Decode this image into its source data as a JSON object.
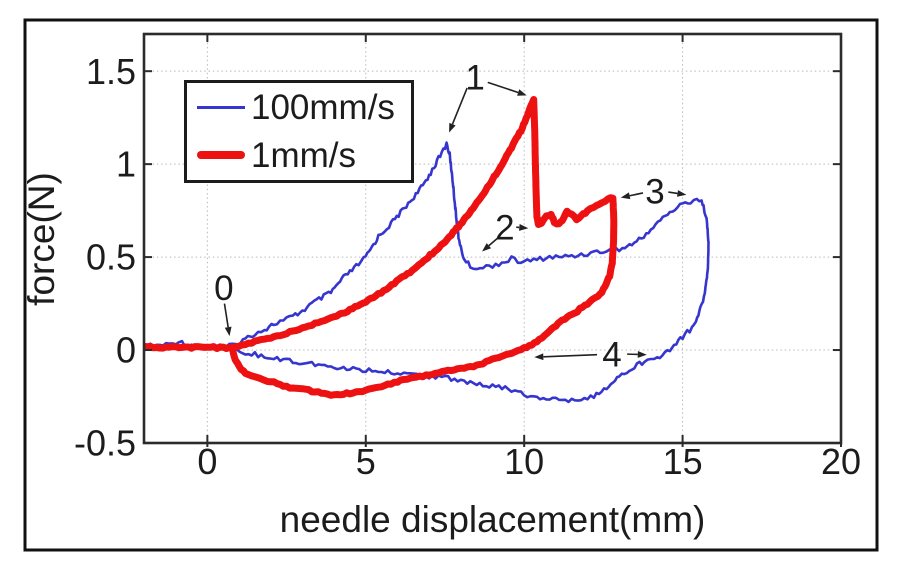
{
  "figure": {
    "background": "#ffffff",
    "border_color": "#111111",
    "frame_color": "#2b2b2b",
    "grid_color": "#b9b9b9",
    "text_color": "#1c1c1c"
  },
  "chart_data": {
    "type": "line",
    "title": "",
    "xlabel": "needle displacement(mm)",
    "ylabel": "force(N)",
    "xlim": [
      -2,
      20
    ],
    "ylim": [
      -0.5,
      1.7
    ],
    "xticks": {
      "values": [
        0,
        5,
        10,
        15,
        20
      ],
      "labels": [
        "0",
        "5",
        "10",
        "15",
        "20"
      ]
    },
    "yticks": {
      "values": [
        -0.5,
        0,
        0.5,
        1,
        1.5
      ],
      "labels": [
        "-0.5",
        "0",
        "0.5",
        "1",
        "1.5"
      ]
    },
    "grid": true,
    "legend": {
      "position": "upper left",
      "entries": [
        {
          "label": "100mm/s",
          "color": "#3636cf",
          "thickness": 3
        },
        {
          "label": "1mm/s",
          "color": "#ee1111",
          "thickness": 8
        }
      ]
    },
    "series": [
      {
        "name": "100mm/s",
        "color": "#3636cf",
        "stroke_width": 2.6,
        "noise": 0.013,
        "points": [
          [
            -2,
            0.02
          ],
          [
            -1.6,
            0.025
          ],
          [
            -1.2,
            0.03
          ],
          [
            -0.9,
            0.05
          ],
          [
            -0.7,
            0.03
          ],
          [
            -0.3,
            0.025
          ],
          [
            0,
            0.02
          ],
          [
            0.4,
            0.02
          ],
          [
            0.7,
            0.02
          ],
          [
            0.9,
            0.03
          ],
          [
            1.2,
            0.06
          ],
          [
            1.5,
            0.09
          ],
          [
            1.8,
            0.11
          ],
          [
            2.1,
            0.14
          ],
          [
            2.4,
            0.16
          ],
          [
            2.7,
            0.18
          ],
          [
            3.0,
            0.21
          ],
          [
            3.3,
            0.25
          ],
          [
            3.6,
            0.28
          ],
          [
            3.9,
            0.31
          ],
          [
            4.3,
            0.39
          ],
          [
            4.7,
            0.45
          ],
          [
            5.0,
            0.5
          ],
          [
            5.4,
            0.61
          ],
          [
            5.8,
            0.68
          ],
          [
            6.1,
            0.74
          ],
          [
            6.4,
            0.8
          ],
          [
            6.7,
            0.86
          ],
          [
            7.0,
            0.94
          ],
          [
            7.2,
            1.0
          ],
          [
            7.4,
            1.06
          ],
          [
            7.55,
            1.11
          ],
          [
            7.65,
            1.05
          ],
          [
            7.75,
            0.9
          ],
          [
            7.85,
            0.72
          ],
          [
            7.95,
            0.58
          ],
          [
            8.1,
            0.49
          ],
          [
            8.3,
            0.45
          ],
          [
            8.6,
            0.44
          ],
          [
            9.0,
            0.455
          ],
          [
            9.3,
            0.47
          ],
          [
            9.6,
            0.49
          ],
          [
            9.9,
            0.475
          ],
          [
            10.2,
            0.48
          ],
          [
            10.5,
            0.49
          ],
          [
            10.8,
            0.5
          ],
          [
            11.1,
            0.5
          ],
          [
            11.4,
            0.505
          ],
          [
            11.7,
            0.51
          ],
          [
            12.0,
            0.52
          ],
          [
            12.4,
            0.53
          ],
          [
            12.8,
            0.535
          ],
          [
            13.1,
            0.545
          ],
          [
            13.4,
            0.57
          ],
          [
            13.7,
            0.6
          ],
          [
            14.0,
            0.65
          ],
          [
            14.3,
            0.7
          ],
          [
            14.6,
            0.74
          ],
          [
            15.0,
            0.785
          ],
          [
            15.25,
            0.8
          ],
          [
            15.45,
            0.815
          ],
          [
            15.6,
            0.8
          ],
          [
            15.75,
            0.72
          ],
          [
            15.82,
            0.58
          ],
          [
            15.8,
            0.44
          ],
          [
            15.7,
            0.3
          ],
          [
            15.5,
            0.19
          ],
          [
            15.3,
            0.12
          ],
          [
            15.0,
            0.07
          ],
          [
            14.8,
            0.04
          ],
          [
            14.6,
            0.0
          ],
          [
            14.2,
            -0.04
          ],
          [
            13.8,
            -0.06
          ],
          [
            13.4,
            -0.095
          ],
          [
            13.0,
            -0.14
          ],
          [
            12.6,
            -0.2
          ],
          [
            12.2,
            -0.245
          ],
          [
            11.8,
            -0.26
          ],
          [
            11.4,
            -0.27
          ],
          [
            11.0,
            -0.265
          ],
          [
            10.6,
            -0.26
          ],
          [
            10.2,
            -0.25
          ],
          [
            9.8,
            -0.225
          ],
          [
            9.4,
            -0.205
          ],
          [
            9.0,
            -0.195
          ],
          [
            8.6,
            -0.18
          ],
          [
            8.2,
            -0.17
          ],
          [
            7.8,
            -0.155
          ],
          [
            7.4,
            -0.15
          ],
          [
            7.0,
            -0.14
          ],
          [
            6.6,
            -0.135
          ],
          [
            6.2,
            -0.13
          ],
          [
            5.8,
            -0.12
          ],
          [
            5.4,
            -0.115
          ],
          [
            5.0,
            -0.11
          ],
          [
            4.6,
            -0.1
          ],
          [
            4.2,
            -0.095
          ],
          [
            3.8,
            -0.085
          ],
          [
            3.4,
            -0.08
          ],
          [
            3.0,
            -0.065
          ],
          [
            2.6,
            -0.06
          ],
          [
            2.2,
            -0.05
          ],
          [
            1.8,
            -0.035
          ],
          [
            1.4,
            -0.02
          ],
          [
            1.1,
            -0.008
          ],
          [
            0.92,
            0.005
          ]
        ]
      },
      {
        "name": "1mm/s",
        "color": "#ee1111",
        "stroke_width": 7,
        "noise": 0.005,
        "points": [
          [
            -2,
            0.015
          ],
          [
            -1.5,
            0.015
          ],
          [
            -1.0,
            0.015
          ],
          [
            -0.5,
            0.015
          ],
          [
            0,
            0.015
          ],
          [
            0.4,
            0.012
          ],
          [
            0.8,
            0.01
          ],
          [
            1.2,
            0.03
          ],
          [
            1.6,
            0.05
          ],
          [
            2.0,
            0.065
          ],
          [
            2.4,
            0.085
          ],
          [
            2.8,
            0.105
          ],
          [
            3.2,
            0.13
          ],
          [
            3.6,
            0.155
          ],
          [
            4.0,
            0.18
          ],
          [
            4.5,
            0.215
          ],
          [
            5.0,
            0.26
          ],
          [
            5.4,
            0.3
          ],
          [
            5.9,
            0.36
          ],
          [
            6.4,
            0.42
          ],
          [
            6.9,
            0.49
          ],
          [
            7.3,
            0.55
          ],
          [
            7.7,
            0.62
          ],
          [
            8.1,
            0.7
          ],
          [
            8.5,
            0.79
          ],
          [
            8.9,
            0.89
          ],
          [
            9.3,
            1.0
          ],
          [
            9.6,
            1.09
          ],
          [
            9.9,
            1.18
          ],
          [
            10.1,
            1.26
          ],
          [
            10.25,
            1.33
          ],
          [
            10.3,
            1.35
          ],
          [
            10.33,
            1.2
          ],
          [
            10.36,
            0.95
          ],
          [
            10.4,
            0.72
          ],
          [
            10.45,
            0.675
          ],
          [
            10.55,
            0.68
          ],
          [
            10.7,
            0.72
          ],
          [
            10.85,
            0.73
          ],
          [
            10.95,
            0.69
          ],
          [
            11.1,
            0.675
          ],
          [
            11.25,
            0.71
          ],
          [
            11.35,
            0.745
          ],
          [
            11.5,
            0.73
          ],
          [
            11.65,
            0.705
          ],
          [
            11.8,
            0.72
          ],
          [
            12.0,
            0.75
          ],
          [
            12.2,
            0.77
          ],
          [
            12.45,
            0.79
          ],
          [
            12.65,
            0.81
          ],
          [
            12.8,
            0.82
          ],
          [
            12.83,
            0.7
          ],
          [
            12.82,
            0.58
          ],
          [
            12.78,
            0.47
          ],
          [
            12.7,
            0.4
          ],
          [
            12.55,
            0.34
          ],
          [
            12.4,
            0.3
          ],
          [
            12.0,
            0.25
          ],
          [
            11.6,
            0.2
          ],
          [
            11.2,
            0.16
          ],
          [
            10.8,
            0.1
          ],
          [
            10.4,
            0.045
          ],
          [
            10.0,
            0.01
          ],
          [
            9.6,
            -0.015
          ],
          [
            9.2,
            -0.04
          ],
          [
            8.8,
            -0.065
          ],
          [
            8.4,
            -0.085
          ],
          [
            8.0,
            -0.1
          ],
          [
            7.6,
            -0.11
          ],
          [
            7.2,
            -0.125
          ],
          [
            6.8,
            -0.14
          ],
          [
            6.4,
            -0.155
          ],
          [
            6.0,
            -0.17
          ],
          [
            5.6,
            -0.19
          ],
          [
            5.2,
            -0.21
          ],
          [
            4.8,
            -0.225
          ],
          [
            4.4,
            -0.235
          ],
          [
            4.0,
            -0.24
          ],
          [
            3.7,
            -0.235
          ],
          [
            3.4,
            -0.225
          ],
          [
            3.0,
            -0.21
          ],
          [
            2.6,
            -0.2
          ],
          [
            2.2,
            -0.18
          ],
          [
            1.8,
            -0.16
          ],
          [
            1.5,
            -0.145
          ],
          [
            1.2,
            -0.125
          ],
          [
            1.0,
            -0.09
          ],
          [
            0.88,
            -0.05
          ],
          [
            0.82,
            -0.015
          ],
          [
            0.8,
            0.005
          ]
        ]
      }
    ],
    "annotations": [
      {
        "label": "0",
        "x": 0.52,
        "y": 0.335,
        "arrows": [
          {
            "x1": 0.54,
            "y1": 0.25,
            "x2": 0.7,
            "y2": 0.075
          }
        ]
      },
      {
        "label": "1",
        "x": 8.45,
        "y": 1.468,
        "arrows": [
          {
            "x1": 8.2,
            "y1": 1.41,
            "x2": 7.63,
            "y2": 1.17
          },
          {
            "x1": 8.85,
            "y1": 1.44,
            "x2": 10.08,
            "y2": 1.37
          }
        ]
      },
      {
        "label": "2",
        "x": 9.39,
        "y": 0.661,
        "arrows": [
          {
            "x1": 9.15,
            "y1": 0.6,
            "x2": 8.67,
            "y2": 0.53
          },
          {
            "x1": 9.75,
            "y1": 0.661,
            "x2": 10.13,
            "y2": 0.655
          }
        ]
      },
      {
        "label": "3",
        "x": 14.13,
        "y": 0.855,
        "arrows": [
          {
            "x1": 13.75,
            "y1": 0.845,
            "x2": 13.05,
            "y2": 0.82
          },
          {
            "x1": 14.55,
            "y1": 0.85,
            "x2": 15.12,
            "y2": 0.835
          }
        ]
      },
      {
        "label": "4",
        "x": 12.77,
        "y": -0.022,
        "arrows": [
          {
            "x1": 12.3,
            "y1": -0.025,
            "x2": 10.32,
            "y2": -0.038
          },
          {
            "x1": 13.25,
            "y1": -0.022,
            "x2": 13.87,
            "y2": -0.025
          }
        ]
      }
    ]
  }
}
